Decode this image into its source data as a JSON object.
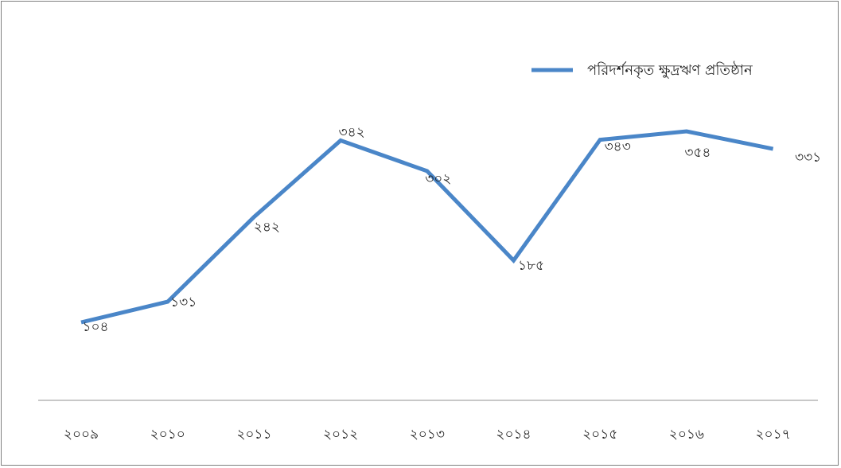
{
  "chart_data": {
    "type": "line",
    "title": "",
    "xlabel": "",
    "ylabel": "",
    "categories": [
      "২০০৯",
      "২০১০",
      "২০১১",
      "২০১২",
      "২০১৩",
      "২০১৪",
      "২০১৫",
      "২০১৬",
      "২০১৭"
    ],
    "series": [
      {
        "name": "পরিদর্শনকৃত ক্ষুদ্রঋণ প্রতিষ্ঠান",
        "color": "#4a86c8",
        "values": [
          104,
          131,
          242,
          342,
          302,
          185,
          343,
          354,
          331
        ],
        "value_labels": [
          "১০৪",
          "১৩১",
          "২৪২",
          "৩৪২",
          "৩০২",
          "১৮৫",
          "৩৪৩",
          "৩৫৪",
          "৩৩১"
        ]
      }
    ],
    "ylim": [
      0,
      400
    ],
    "grid": false,
    "legend": "top-right"
  }
}
